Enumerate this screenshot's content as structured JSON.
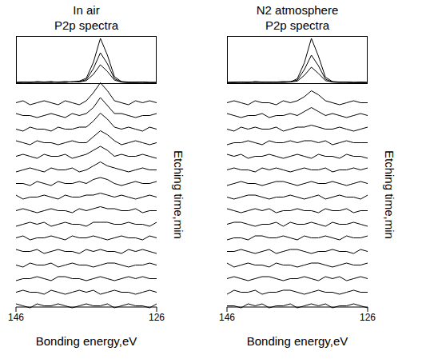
{
  "chart_data": [
    {
      "type": "line",
      "title": "In air",
      "subtitle": "P2p spectra",
      "x_label": "Bonding energy,eV",
      "y_label": "Etching time,min",
      "color": "#000000",
      "tick_labels": "x",
      "x": [
        146,
        145,
        144,
        143,
        142,
        141,
        140,
        139,
        138,
        137,
        136,
        135,
        134,
        133,
        132,
        131,
        130,
        129,
        128,
        127,
        126
      ],
      "xlim": [
        146,
        126
      ],
      "xticks": [
        146,
        126
      ],
      "top": {
        "ylim": [
          0,
          100
        ],
        "series": [
          {
            "values": [
              3,
              4,
              3,
              5,
              4,
              3,
              4,
              5,
              4,
              6,
              12,
              45,
              95,
              60,
              15,
              5,
              4,
              3,
              4,
              3,
              3
            ]
          },
          {
            "values": [
              3,
              3,
              4,
              3,
              4,
              5,
              3,
              4,
              4,
              5,
              9,
              32,
              65,
              42,
              11,
              4,
              3,
              4,
              3,
              3,
              3
            ]
          },
          {
            "values": [
              3,
              4,
              3,
              4,
              3,
              4,
              4,
              3,
              5,
              4,
              7,
              20,
              40,
              26,
              8,
              4,
              3,
              3,
              4,
              3,
              3
            ]
          }
        ]
      },
      "waterfall": {
        "ylim": [
          -5,
          15
        ],
        "series": [
          {
            "values": [
              0,
              1,
              -1,
              0,
              1,
              0,
              -1,
              1,
              0,
              -1,
              1,
              5,
              10,
              6,
              1,
              0,
              -1,
              1,
              0,
              1,
              0
            ]
          },
          {
            "values": [
              1,
              0,
              0,
              -1,
              0,
              1,
              0,
              -1,
              1,
              0,
              1,
              4,
              9,
              5,
              1,
              1,
              0,
              -1,
              0,
              0,
              1
            ]
          },
          {
            "values": [
              0,
              -1,
              1,
              0,
              0,
              -1,
              1,
              0,
              0,
              1,
              1,
              4,
              8,
              5,
              1,
              0,
              1,
              0,
              -1,
              1,
              0
            ]
          },
          {
            "values": [
              1,
              0,
              -1,
              1,
              0,
              0,
              -1,
              0,
              1,
              0,
              0,
              3,
              6,
              4,
              1,
              -1,
              0,
              1,
              0,
              -1,
              0
            ]
          },
          {
            "values": [
              0,
              1,
              0,
              -1,
              1,
              0,
              0,
              1,
              -1,
              0,
              1,
              3,
              5,
              3,
              0,
              1,
              0,
              0,
              1,
              0,
              -1
            ]
          },
          {
            "values": [
              -1,
              0,
              1,
              0,
              -1,
              1,
              0,
              0,
              1,
              -1,
              0,
              2,
              4,
              2,
              1,
              0,
              -1,
              0,
              1,
              0,
              0
            ]
          },
          {
            "values": [
              0,
              0,
              -1,
              1,
              0,
              -1,
              1,
              0,
              0,
              1,
              0,
              2,
              3,
              2,
              0,
              -1,
              0,
              1,
              0,
              0,
              1
            ]
          },
          {
            "values": [
              1,
              -1,
              0,
              0,
              1,
              0,
              -1,
              1,
              0,
              0,
              1,
              1,
              2,
              1,
              0,
              1,
              0,
              -1,
              0,
              1,
              0
            ]
          },
          {
            "values": [
              0,
              1,
              0,
              -1,
              0,
              1,
              0,
              0,
              -1,
              1,
              0,
              1,
              2,
              1,
              1,
              0,
              0,
              1,
              -1,
              0,
              0
            ]
          },
          {
            "values": [
              -1,
              0,
              1,
              0,
              1,
              -1,
              0,
              1,
              0,
              0,
              -1,
              1,
              1,
              1,
              0,
              0,
              1,
              0,
              0,
              -1,
              1
            ]
          },
          {
            "values": [
              0,
              1,
              -1,
              0,
              0,
              1,
              0,
              -1,
              1,
              0,
              0,
              1,
              0,
              -1,
              0,
              1,
              0,
              0,
              -1,
              1,
              0
            ]
          },
          {
            "values": [
              1,
              0,
              0,
              1,
              -1,
              0,
              1,
              0,
              0,
              -1,
              1,
              0,
              1,
              0,
              0,
              -1,
              1,
              0,
              1,
              0,
              -1
            ]
          },
          {
            "values": [
              0,
              -1,
              1,
              0,
              0,
              1,
              -1,
              0,
              1,
              0,
              0,
              -1,
              0,
              1,
              1,
              0,
              -1,
              0,
              0,
              1,
              0
            ]
          },
          {
            "values": [
              -1,
              0,
              0,
              1,
              0,
              -1,
              1,
              1,
              0,
              0,
              -1,
              0,
              1,
              0,
              -1,
              0,
              1,
              0,
              1,
              0,
              0
            ]
          },
          {
            "values": [
              0,
              1,
              0,
              0,
              -1,
              1,
              0,
              -1,
              0,
              1,
              0,
              1,
              -1,
              0,
              1,
              0,
              0,
              -1,
              0,
              1,
              0
            ]
          },
          {
            "values": [
              1,
              0,
              -1,
              1,
              0,
              0,
              1,
              0,
              -1,
              0,
              1,
              0,
              0,
              1,
              -1,
              0,
              1,
              0,
              0,
              -1,
              1
            ]
          }
        ]
      }
    },
    {
      "type": "line",
      "title": "N2 atmosphere",
      "subtitle": "P2p spectra",
      "x_label": "Bonding energy,eV",
      "y_label": "Etching time,min",
      "color": "#000000",
      "tick_labels": "x",
      "x": [
        146,
        145,
        144,
        143,
        142,
        141,
        140,
        139,
        138,
        137,
        136,
        135,
        134,
        133,
        132,
        131,
        130,
        129,
        128,
        127,
        126
      ],
      "xlim": [
        146,
        126
      ],
      "xticks": [
        146,
        126
      ],
      "top": {
        "ylim": [
          0,
          100
        ],
        "series": [
          {
            "values": [
              3,
              3,
              4,
              3,
              5,
              4,
              3,
              4,
              5,
              4,
              11,
              44,
              95,
              58,
              14,
              5,
              4,
              4,
              3,
              3,
              3
            ]
          },
          {
            "values": [
              3,
              4,
              3,
              4,
              3,
              4,
              4,
              3,
              4,
              5,
              8,
              30,
              60,
              38,
              10,
              4,
              3,
              4,
              3,
              3,
              3
            ]
          },
          {
            "values": [
              3,
              3,
              4,
              3,
              4,
              3,
              4,
              4,
              3,
              4,
              6,
              18,
              35,
              22,
              7,
              4,
              4,
              3,
              3,
              4,
              3
            ]
          }
        ]
      },
      "waterfall": {
        "ylim": [
          -5,
          15
        ],
        "series": [
          {
            "values": [
              0,
              1,
              0,
              -1,
              1,
              0,
              0,
              -1,
              1,
              0,
              1,
              3,
              6,
              4,
              1,
              0,
              -1,
              0,
              1,
              0,
              0
            ]
          },
          {
            "values": [
              1,
              0,
              -1,
              0,
              0,
              1,
              -1,
              0,
              0,
              1,
              0,
              2,
              4,
              2,
              0,
              1,
              0,
              -1,
              0,
              1,
              0
            ]
          },
          {
            "values": [
              0,
              -1,
              1,
              0,
              1,
              0,
              0,
              1,
              -1,
              0,
              1,
              1,
              2,
              1,
              0,
              0,
              1,
              0,
              -1,
              0,
              1
            ]
          },
          {
            "values": [
              -1,
              0,
              0,
              1,
              0,
              -1,
              1,
              0,
              0,
              1,
              0,
              1,
              1,
              0,
              1,
              -1,
              0,
              1,
              0,
              0,
              0
            ]
          },
          {
            "values": [
              1,
              0,
              1,
              -1,
              0,
              0,
              1,
              0,
              -1,
              0,
              1,
              0,
              -1,
              1,
              0,
              0,
              -1,
              1,
              0,
              0,
              -1
            ]
          },
          {
            "values": [
              0,
              1,
              0,
              0,
              -1,
              1,
              0,
              1,
              0,
              -1,
              0,
              1,
              0,
              0,
              1,
              -1,
              0,
              0,
              1,
              0,
              1
            ]
          },
          {
            "values": [
              -1,
              0,
              1,
              0,
              0,
              -1,
              0,
              1,
              1,
              0,
              -1,
              0,
              1,
              0,
              0,
              1,
              0,
              -1,
              0,
              1,
              0
            ]
          },
          {
            "values": [
              0,
              -1,
              0,
              1,
              1,
              0,
              -1,
              0,
              0,
              1,
              0,
              -1,
              0,
              1,
              -1,
              0,
              1,
              0,
              0,
              -1,
              1
            ]
          },
          {
            "values": [
              1,
              0,
              -1,
              0,
              1,
              0,
              1,
              -1,
              0,
              0,
              1,
              0,
              0,
              -1,
              1,
              0,
              0,
              1,
              -1,
              0,
              0
            ]
          },
          {
            "values": [
              0,
              1,
              1,
              0,
              -1,
              0,
              0,
              1,
              -1,
              1,
              0,
              0,
              1,
              0,
              -1,
              1,
              0,
              0,
              1,
              0,
              -1
            ]
          },
          {
            "values": [
              -1,
              0,
              0,
              -1,
              1,
              1,
              0,
              0,
              1,
              0,
              -1,
              1,
              0,
              0,
              1,
              0,
              -1,
              1,
              0,
              0,
              1
            ]
          },
          {
            "values": [
              0,
              0,
              1,
              0,
              -1,
              0,
              1,
              -1,
              0,
              1,
              1,
              0,
              -1,
              0,
              0,
              1,
              0,
              0,
              -1,
              1,
              0
            ]
          },
          {
            "values": [
              1,
              -1,
              0,
              1,
              0,
              0,
              -1,
              1,
              0,
              0,
              -1,
              0,
              1,
              1,
              0,
              -1,
              0,
              1,
              0,
              0,
              1
            ]
          },
          {
            "values": [
              0,
              1,
              0,
              -1,
              0,
              1,
              1,
              0,
              -1,
              0,
              0,
              1,
              0,
              -1,
              1,
              0,
              1,
              -1,
              0,
              1,
              0
            ]
          },
          {
            "values": [
              -1,
              1,
              0,
              0,
              1,
              -1,
              0,
              0,
              1,
              1,
              0,
              -1,
              0,
              1,
              0,
              0,
              -1,
              0,
              1,
              0,
              0
            ]
          },
          {
            "values": [
              0,
              0,
              -1,
              1,
              0,
              1,
              -1,
              0,
              0,
              1,
              -1,
              0,
              1,
              0,
              1,
              -1,
              0,
              0,
              1,
              0,
              -1
            ]
          }
        ]
      }
    }
  ]
}
